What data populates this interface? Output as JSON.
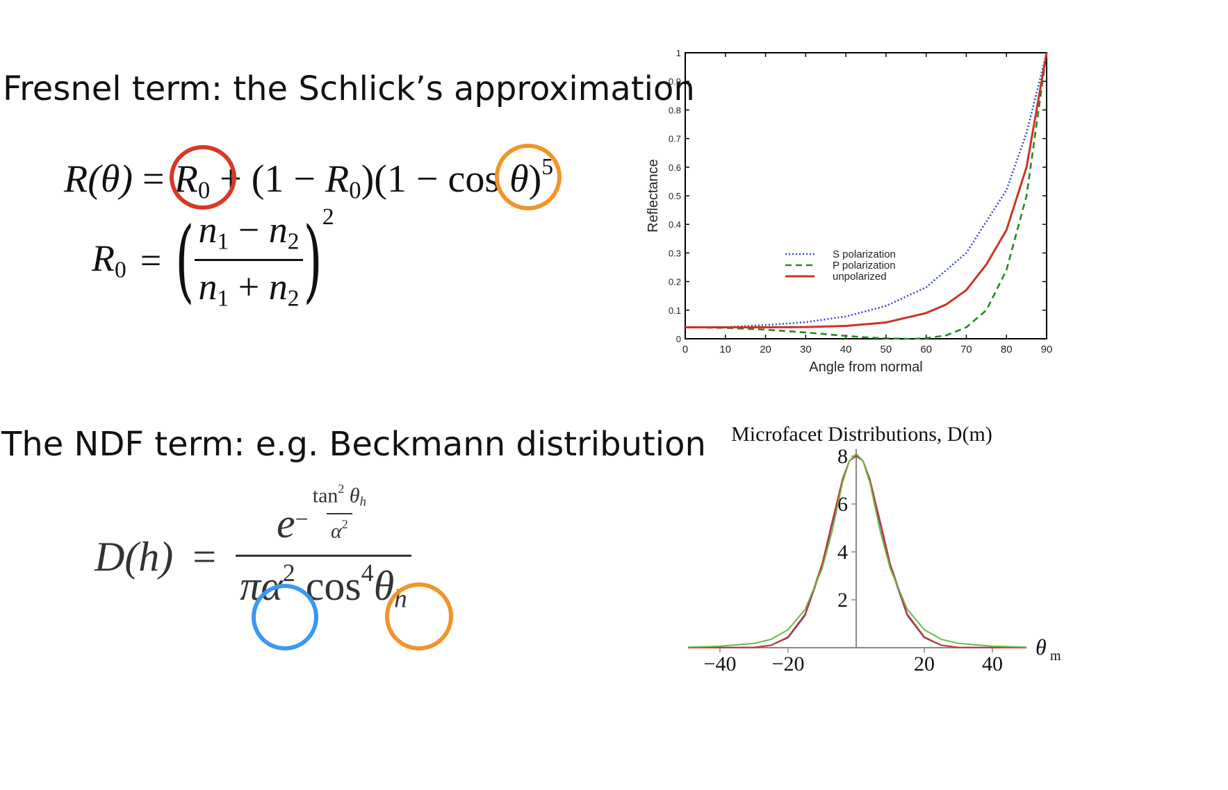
{
  "sections": {
    "fresnel_heading": "Fresnel term: the Schlick’s approximation",
    "ndf_heading": "The NDF term: e.g. Beckmann distribution"
  },
  "equations": {
    "schlick": {
      "lhs": "R(θ)",
      "eq": "=",
      "R0": "R",
      "sub0": "0",
      "plus": "+ (1 −",
      "R0b": "R",
      "sub0b": "0",
      "mid": ")(1 −",
      "cos": "cos",
      "theta": "θ",
      "close": ")",
      "exp": "5"
    },
    "r0": {
      "lhs_R": "R",
      "lhs_sub": "0",
      "eq": "=",
      "num_a": "n",
      "num_a_sub": "1",
      "num_op": "−",
      "num_b": "n",
      "num_b_sub": "2",
      "den_a": "n",
      "den_a_sub": "1",
      "den_op": "+",
      "den_b": "n",
      "den_b_sub": "2",
      "exp": "2"
    },
    "beckmann": {
      "lhs": "D(h)",
      "eq": "=",
      "e": "e",
      "minus": "−",
      "tan": "tan",
      "tan_exp": "2",
      "theta_h": "θ",
      "h_sub": "h",
      "alpha": "α",
      "alpha_exp": "2",
      "pi": "π",
      "cos": "cos",
      "cos_exp": "4"
    }
  },
  "highlight_colors": {
    "r0_ring": "#d63a26",
    "cos_ring": "#f0952a",
    "alpha_ring": "#3a98f2",
    "theta_ring": "#f0952a"
  },
  "chart_data": [
    {
      "type": "line",
      "title": "",
      "xlabel": "Angle from normal",
      "ylabel": "Reflectance",
      "xlim": [
        0,
        90
      ],
      "ylim": [
        0,
        1
      ],
      "x_ticks": [
        "0",
        "10",
        "20",
        "30",
        "40",
        "50",
        "60",
        "70",
        "80",
        "90"
      ],
      "y_ticks": [
        "0",
        "0.1",
        "0.2",
        "0.3",
        "0.4",
        "0.5",
        "0.6",
        "0.7",
        "0.8",
        "0.9",
        "1"
      ],
      "grid": false,
      "legend_position": "center-left",
      "series": [
        {
          "name": "S polarization",
          "color": "#3344cc",
          "style": "dotted",
          "x": [
            0,
            10,
            20,
            30,
            40,
            50,
            60,
            70,
            80,
            85,
            90
          ],
          "y": [
            0.04,
            0.041,
            0.048,
            0.058,
            0.078,
            0.115,
            0.18,
            0.3,
            0.52,
            0.72,
            1.0
          ]
        },
        {
          "name": "P polarization",
          "color": "#228822",
          "style": "dashed",
          "x": [
            0,
            10,
            20,
            30,
            40,
            45,
            50,
            55,
            57,
            60,
            65,
            70,
            75,
            80,
            85,
            90
          ],
          "y": [
            0.04,
            0.038,
            0.032,
            0.022,
            0.01,
            0.005,
            0.0015,
            0.0,
            0.0,
            0.002,
            0.012,
            0.04,
            0.1,
            0.24,
            0.5,
            1.0
          ]
        },
        {
          "name": "unpolarized",
          "color": "#cc3322",
          "style": "solid",
          "x": [
            0,
            10,
            20,
            30,
            40,
            50,
            60,
            65,
            70,
            75,
            80,
            85,
            90
          ],
          "y": [
            0.04,
            0.04,
            0.04,
            0.041,
            0.045,
            0.057,
            0.09,
            0.12,
            0.17,
            0.26,
            0.38,
            0.6,
            1.0
          ]
        }
      ]
    },
    {
      "type": "line",
      "title": "Microfacet Distributions, D(m)",
      "xlabel": "θ",
      "xlabel_sub": "m",
      "ylabel": "",
      "xlim": [
        -50,
        50
      ],
      "ylim": [
        0,
        8
      ],
      "x_ticks": [
        "−40",
        "−20",
        "20",
        "40"
      ],
      "x_tick_values": [
        -40,
        -20,
        20,
        40
      ],
      "y_ticks": [
        "2",
        "4",
        "6",
        "8"
      ],
      "y_tick_values": [
        2,
        4,
        6,
        8
      ],
      "series": [
        {
          "color": "#7a2a8a",
          "x": [
            -50,
            -30,
            -25,
            -20,
            -15,
            -10,
            -7,
            -4,
            -2,
            0,
            2,
            4,
            7,
            10,
            15,
            20,
            25,
            30,
            50
          ],
          "y": [
            0,
            0.01,
            0.1,
            0.42,
            1.35,
            3.4,
            5.2,
            7.0,
            7.8,
            8.05,
            7.8,
            7.0,
            5.2,
            3.4,
            1.35,
            0.42,
            0.1,
            0.01,
            0
          ]
        },
        {
          "color": "#c23a3a",
          "x": [
            -50,
            -30,
            -25,
            -20,
            -15,
            -10,
            -7,
            -4,
            -2,
            0,
            2,
            4,
            7,
            10,
            15,
            20,
            25,
            30,
            50
          ],
          "y": [
            0,
            0.01,
            0.1,
            0.45,
            1.4,
            3.5,
            5.3,
            7.05,
            7.8,
            8.0,
            7.8,
            7.05,
            5.3,
            3.5,
            1.4,
            0.45,
            0.1,
            0.01,
            0
          ]
        },
        {
          "color": "#66bb44",
          "x": [
            -50,
            -40,
            -30,
            -25,
            -20,
            -15,
            -10,
            -7,
            -4,
            -2,
            0,
            2,
            4,
            7,
            10,
            15,
            20,
            25,
            30,
            40,
            50
          ],
          "y": [
            0.02,
            0.06,
            0.18,
            0.35,
            0.75,
            1.6,
            3.3,
            4.9,
            6.9,
            7.8,
            8.1,
            7.8,
            6.9,
            4.9,
            3.3,
            1.6,
            0.75,
            0.35,
            0.18,
            0.06,
            0.02
          ]
        }
      ]
    }
  ]
}
